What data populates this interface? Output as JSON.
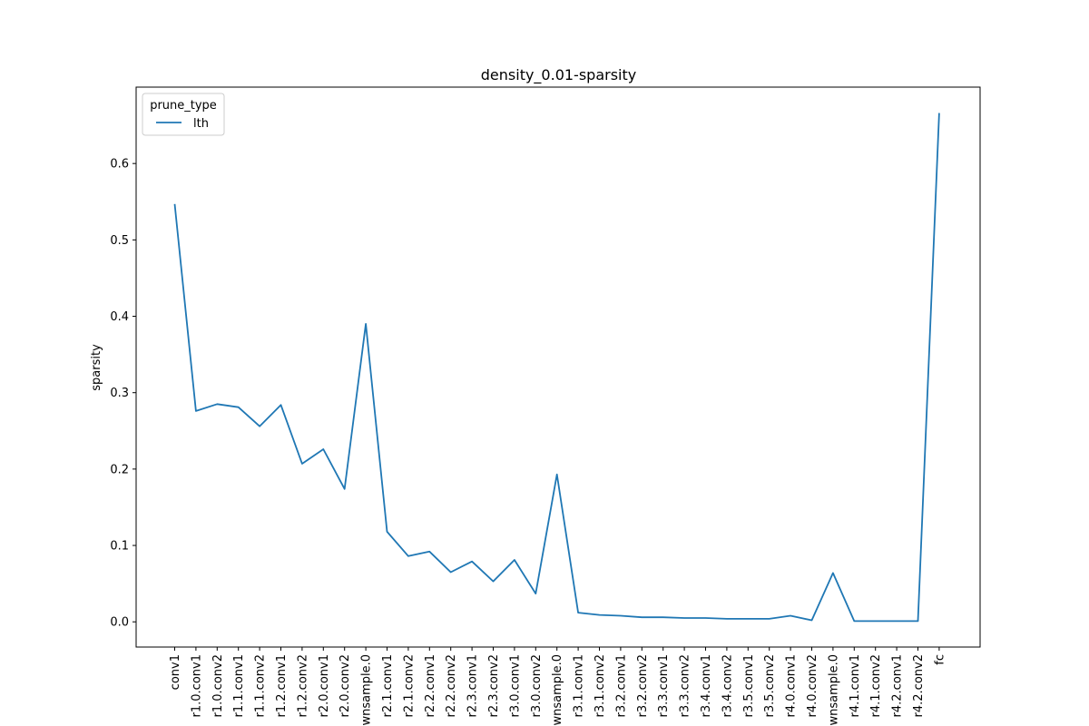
{
  "chart_data": {
    "type": "line",
    "title": "density_0.01-sparsity",
    "xlabel": "",
    "ylabel": "sparsity",
    "ylim": [
      -0.033,
      0.7
    ],
    "yticks": [
      0.0,
      0.1,
      0.2,
      0.3,
      0.4,
      0.5,
      0.6
    ],
    "ytick_labels": [
      "0.0",
      "0.1",
      "0.2",
      "0.3",
      "0.4",
      "0.5",
      "0.6"
    ],
    "grid": false,
    "legend": {
      "title": "prune_type",
      "placement": "top-left"
    },
    "categories": [
      "conv1",
      "r1.0.conv1",
      "r1.0.conv2",
      "r1.1.conv1",
      "r1.1.conv2",
      "r1.2.conv1",
      "r1.2.conv2",
      "r2.0.conv1",
      "r2.0.conv2",
      "wnsample.0",
      "r2.1.conv1",
      "r2.1.conv2",
      "r2.2.conv1",
      "r2.2.conv2",
      "r2.3.conv1",
      "r2.3.conv2",
      "r3.0.conv1",
      "r3.0.conv2",
      "wnsample.0",
      "r3.1.conv1",
      "r3.1.conv2",
      "r3.2.conv1",
      "r3.2.conv2",
      "r3.3.conv1",
      "r3.3.conv2",
      "r3.4.conv1",
      "r3.4.conv2",
      "r3.5.conv1",
      "r3.5.conv2",
      "r4.0.conv1",
      "r4.0.conv2",
      "wnsample.0",
      "r4.1.conv1",
      "r4.1.conv2",
      "r4.2.conv1",
      "r4.2.conv2",
      "fc"
    ],
    "series": [
      {
        "name": "lth",
        "color": "#1f77b4",
        "values": [
          0.547,
          0.276,
          0.285,
          0.281,
          0.256,
          0.284,
          0.207,
          0.226,
          0.174,
          0.39,
          0.118,
          0.086,
          0.092,
          0.065,
          0.079,
          0.053,
          0.081,
          0.037,
          0.193,
          0.012,
          0.009,
          0.008,
          0.006,
          0.006,
          0.005,
          0.005,
          0.004,
          0.004,
          0.004,
          0.008,
          0.002,
          0.064,
          0.001,
          0.001,
          0.001,
          0.001,
          0.666
        ]
      }
    ]
  }
}
